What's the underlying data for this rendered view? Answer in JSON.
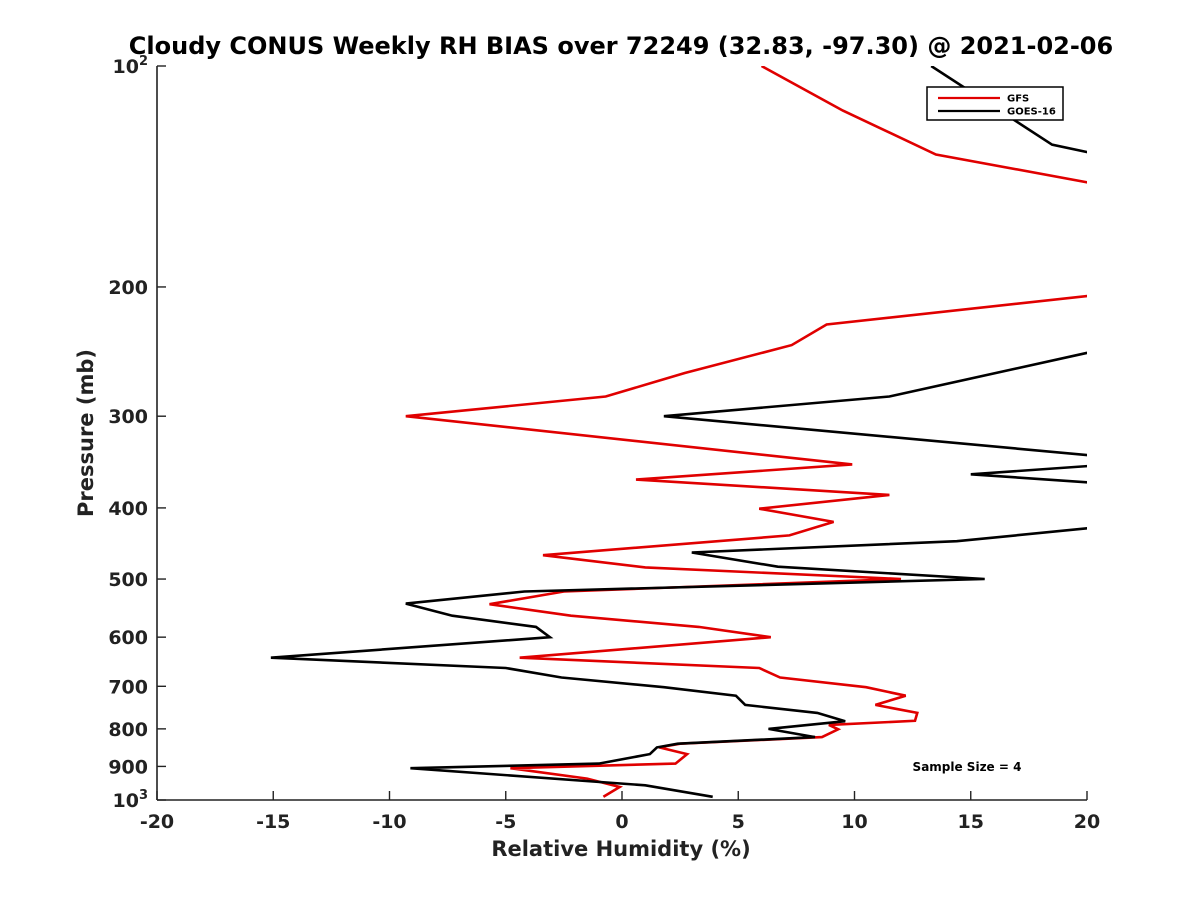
{
  "chart_data": {
    "type": "line",
    "title": "Cloudy CONUS Weekly RH BIAS over 72249 (32.83, -97.30) @ 2021-02-06",
    "xlabel": "Relative Humidity (%)",
    "ylabel": "Pressure (mb)",
    "xlim": [
      -20,
      20
    ],
    "ylim": [
      100,
      1000
    ],
    "y_scale": "log",
    "y_reversed": true,
    "x_ticks": [
      "-20",
      "-15",
      "-10",
      "-5",
      "0",
      "5",
      "10",
      "15",
      "20"
    ],
    "y_ticks": [
      {
        "value": 100,
        "base": "10",
        "exp": "2"
      },
      {
        "value": 200,
        "label": "200"
      },
      {
        "value": 300,
        "label": "300"
      },
      {
        "value": 400,
        "label": "400"
      },
      {
        "value": 500,
        "label": "500"
      },
      {
        "value": 600,
        "label": "600"
      },
      {
        "value": 700,
        "label": "700"
      },
      {
        "value": 800,
        "label": "800"
      },
      {
        "value": 900,
        "label": "900"
      },
      {
        "value": 1000,
        "base": "10",
        "exp": "3"
      }
    ],
    "grid": false,
    "legend_position": "top-right",
    "annotation": "Sample Size = 4",
    "series": [
      {
        "name": "GFS",
        "color": "#e00000",
        "points": [
          [
            6.0,
            100
          ],
          [
            9.5,
            115
          ],
          [
            13.5,
            132
          ],
          [
            20.5,
            145
          ],
          [
            20.5,
            205
          ],
          [
            8.8,
            225
          ],
          [
            7.3,
            240
          ],
          [
            2.7,
            262
          ],
          [
            -0.7,
            282
          ],
          [
            -9.3,
            300
          ],
          [
            9.9,
            349
          ],
          [
            0.6,
            366
          ],
          [
            11.5,
            384
          ],
          [
            5.9,
            401
          ],
          [
            9.1,
            418
          ],
          [
            7.2,
            436
          ],
          [
            -3.4,
            464
          ],
          [
            1.0,
            482
          ],
          [
            12.0,
            500
          ],
          [
            -2.5,
            520
          ],
          [
            -5.7,
            541
          ],
          [
            -2.2,
            561
          ],
          [
            3.3,
            581
          ],
          [
            6.4,
            600
          ],
          [
            -4.4,
            640
          ],
          [
            5.9,
            661
          ],
          [
            6.8,
            681
          ],
          [
            10.5,
            702
          ],
          [
            12.2,
            721
          ],
          [
            10.9,
            742
          ],
          [
            12.7,
            761
          ],
          [
            12.6,
            780
          ],
          [
            8.9,
            790
          ],
          [
            9.3,
            801
          ],
          [
            8.6,
            821
          ],
          [
            2.5,
            838
          ],
          [
            1.6,
            848
          ],
          [
            2.8,
            866
          ],
          [
            2.3,
            892
          ],
          [
            -4.8,
            905
          ],
          [
            -1.5,
            935
          ],
          [
            -0.1,
            960
          ],
          [
            -0.8,
            990
          ]
        ]
      },
      {
        "name": "GOES-16",
        "color": "#000000",
        "points": [
          [
            13.3,
            100
          ],
          [
            18.5,
            128
          ],
          [
            20.5,
            132
          ],
          [
            20.5,
            244
          ],
          [
            11.5,
            282
          ],
          [
            1.8,
            300
          ],
          [
            20.5,
            340
          ],
          [
            20.5,
            350
          ],
          [
            15.0,
            360
          ],
          [
            20.5,
            370
          ],
          [
            20.5,
            425
          ],
          [
            14.4,
            444
          ],
          [
            3.0,
            460
          ],
          [
            6.7,
            481
          ],
          [
            15.6,
            500
          ],
          [
            -4.2,
            520
          ],
          [
            -9.3,
            540
          ],
          [
            -7.3,
            561
          ],
          [
            -3.7,
            581
          ],
          [
            -3.1,
            600
          ],
          [
            -15.1,
            640
          ],
          [
            -5.0,
            661
          ],
          [
            -2.6,
            681
          ],
          [
            1.8,
            702
          ],
          [
            4.9,
            721
          ],
          [
            5.3,
            742
          ],
          [
            8.4,
            761
          ],
          [
            9.6,
            781
          ],
          [
            6.3,
            800
          ],
          [
            8.3,
            821
          ],
          [
            2.4,
            838
          ],
          [
            1.5,
            848
          ],
          [
            1.2,
            866
          ],
          [
            -1.0,
            892
          ],
          [
            -9.1,
            905
          ],
          [
            1.0,
            955
          ],
          [
            3.9,
            990
          ]
        ]
      }
    ]
  }
}
